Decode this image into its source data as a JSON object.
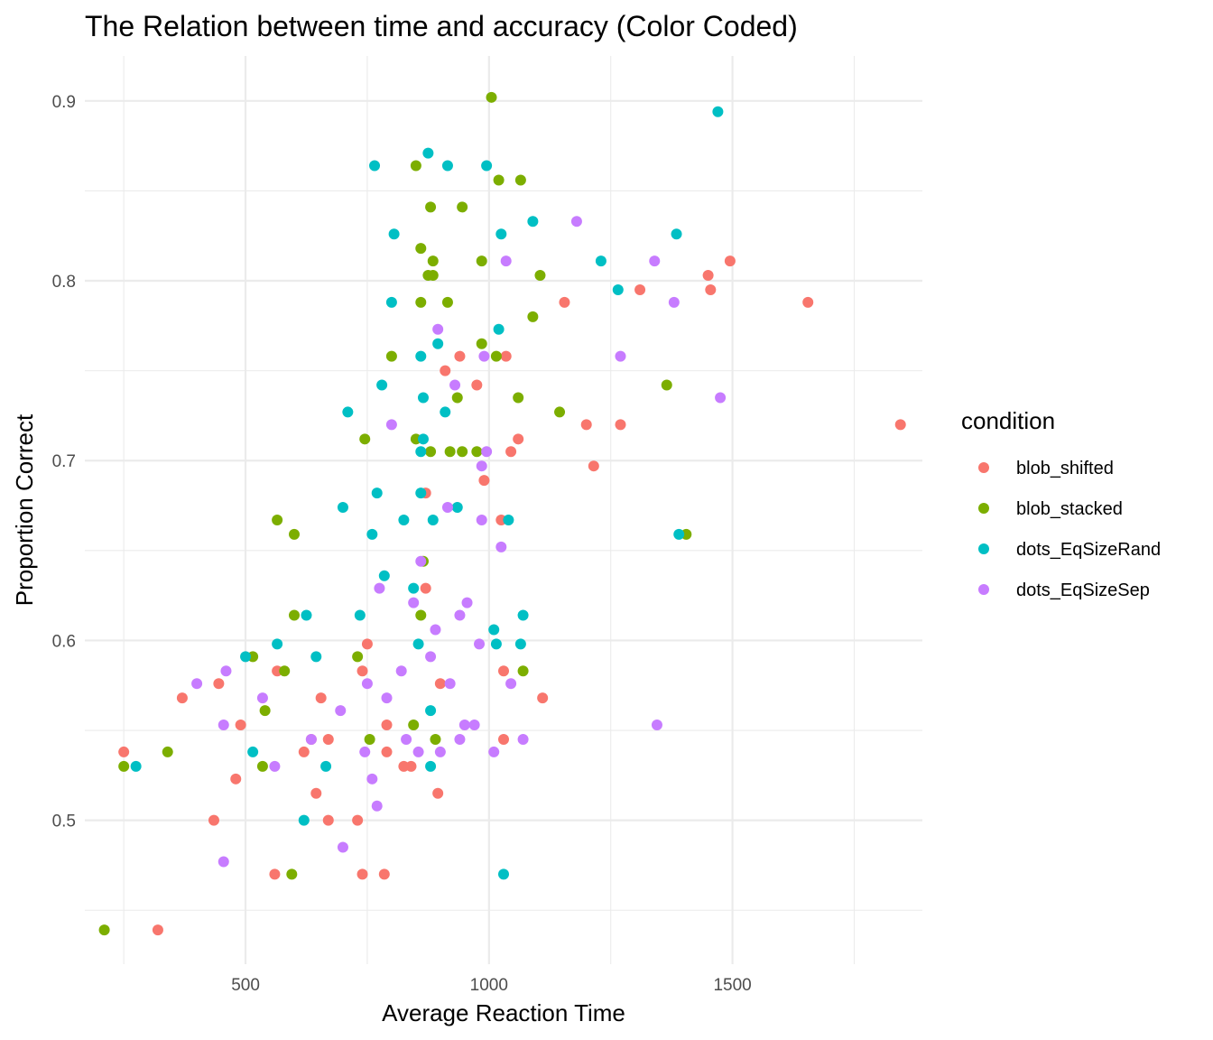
{
  "chart_data": {
    "type": "scatter",
    "title": "The Relation between time and accuracy (Color Coded)",
    "xlabel": "Average Reaction Time",
    "ylabel": "Proportion Correct",
    "xlim": [
      170,
      1890
    ],
    "ylim": [
      0.42,
      0.925
    ],
    "x_ticks": [
      500,
      1000,
      1500
    ],
    "x_minor_ticks": [
      250,
      750,
      1250,
      1750
    ],
    "y_ticks": [
      0.5,
      0.6,
      0.7,
      0.8,
      0.9
    ],
    "y_minor_ticks": [
      0.45,
      0.55,
      0.65,
      0.75,
      0.85
    ],
    "grid": true,
    "legend": {
      "title": "condition",
      "position": "right"
    },
    "series": [
      {
        "name": "blob_shifted",
        "color": "#F8766D",
        "points": [
          [
            250,
            0.538
          ],
          [
            320,
            0.439
          ],
          [
            370,
            0.568
          ],
          [
            435,
            0.5
          ],
          [
            445,
            0.576
          ],
          [
            490,
            0.553
          ],
          [
            480,
            0.523
          ],
          [
            565,
            0.583
          ],
          [
            560,
            0.47
          ],
          [
            620,
            0.538
          ],
          [
            635,
            0.545
          ],
          [
            645,
            0.515
          ],
          [
            655,
            0.568
          ],
          [
            670,
            0.545
          ],
          [
            670,
            0.5
          ],
          [
            730,
            0.5
          ],
          [
            740,
            0.583
          ],
          [
            750,
            0.598
          ],
          [
            740,
            0.47
          ],
          [
            785,
            0.47
          ],
          [
            790,
            0.553
          ],
          [
            790,
            0.538
          ],
          [
            825,
            0.53
          ],
          [
            840,
            0.53
          ],
          [
            870,
            0.682
          ],
          [
            870,
            0.629
          ],
          [
            895,
            0.515
          ],
          [
            900,
            0.576
          ],
          [
            910,
            0.75
          ],
          [
            940,
            0.758
          ],
          [
            975,
            0.742
          ],
          [
            990,
            0.689
          ],
          [
            1025,
            0.667
          ],
          [
            1030,
            0.583
          ],
          [
            1030,
            0.545
          ],
          [
            1035,
            0.758
          ],
          [
            1045,
            0.705
          ],
          [
            1060,
            0.712
          ],
          [
            1110,
            0.568
          ],
          [
            1155,
            0.788
          ],
          [
            1200,
            0.72
          ],
          [
            1215,
            0.697
          ],
          [
            1270,
            0.72
          ],
          [
            1310,
            0.795
          ],
          [
            1450,
            0.803
          ],
          [
            1455,
            0.795
          ],
          [
            1495,
            0.811
          ],
          [
            1655,
            0.788
          ],
          [
            1845,
            0.72
          ]
        ]
      },
      {
        "name": "blob_stacked",
        "color": "#7CAE00",
        "points": [
          [
            210,
            0.439
          ],
          [
            250,
            0.53
          ],
          [
            340,
            0.538
          ],
          [
            515,
            0.591
          ],
          [
            535,
            0.53
          ],
          [
            540,
            0.561
          ],
          [
            565,
            0.667
          ],
          [
            580,
            0.583
          ],
          [
            595,
            0.47
          ],
          [
            600,
            0.659
          ],
          [
            600,
            0.614
          ],
          [
            730,
            0.591
          ],
          [
            745,
            0.712
          ],
          [
            755,
            0.545
          ],
          [
            800,
            0.758
          ],
          [
            845,
            0.553
          ],
          [
            850,
            0.864
          ],
          [
            850,
            0.712
          ],
          [
            860,
            0.788
          ],
          [
            860,
            0.818
          ],
          [
            860,
            0.614
          ],
          [
            865,
            0.644
          ],
          [
            875,
            0.803
          ],
          [
            880,
            0.841
          ],
          [
            880,
            0.705
          ],
          [
            885,
            0.803
          ],
          [
            885,
            0.811
          ],
          [
            890,
            0.545
          ],
          [
            915,
            0.788
          ],
          [
            920,
            0.705
          ],
          [
            935,
            0.735
          ],
          [
            945,
            0.841
          ],
          [
            945,
            0.705
          ],
          [
            975,
            0.705
          ],
          [
            985,
            0.811
          ],
          [
            985,
            0.765
          ],
          [
            1005,
            0.902
          ],
          [
            1015,
            0.758
          ],
          [
            1020,
            0.856
          ],
          [
            1060,
            0.735
          ],
          [
            1065,
            0.856
          ],
          [
            1070,
            0.583
          ],
          [
            1090,
            0.78
          ],
          [
            1105,
            0.803
          ],
          [
            1145,
            0.727
          ],
          [
            1365,
            0.742
          ],
          [
            1405,
            0.659
          ]
        ]
      },
      {
        "name": "dots_EqSizeRand",
        "color": "#00BFC4",
        "points": [
          [
            275,
            0.53
          ],
          [
            500,
            0.591
          ],
          [
            515,
            0.538
          ],
          [
            565,
            0.598
          ],
          [
            620,
            0.5
          ],
          [
            625,
            0.614
          ],
          [
            645,
            0.591
          ],
          [
            665,
            0.53
          ],
          [
            700,
            0.674
          ],
          [
            710,
            0.727
          ],
          [
            735,
            0.614
          ],
          [
            760,
            0.659
          ],
          [
            765,
            0.864
          ],
          [
            770,
            0.682
          ],
          [
            780,
            0.742
          ],
          [
            785,
            0.636
          ],
          [
            800,
            0.788
          ],
          [
            805,
            0.826
          ],
          [
            825,
            0.667
          ],
          [
            845,
            0.629
          ],
          [
            855,
            0.598
          ],
          [
            860,
            0.705
          ],
          [
            860,
            0.758
          ],
          [
            860,
            0.682
          ],
          [
            865,
            0.735
          ],
          [
            865,
            0.712
          ],
          [
            875,
            0.871
          ],
          [
            880,
            0.561
          ],
          [
            880,
            0.53
          ],
          [
            885,
            0.667
          ],
          [
            895,
            0.765
          ],
          [
            910,
            0.727
          ],
          [
            915,
            0.864
          ],
          [
            935,
            0.674
          ],
          [
            995,
            0.864
          ],
          [
            1010,
            0.606
          ],
          [
            1015,
            0.598
          ],
          [
            1020,
            0.773
          ],
          [
            1025,
            0.826
          ],
          [
            1030,
            0.47
          ],
          [
            1040,
            0.667
          ],
          [
            1065,
            0.598
          ],
          [
            1070,
            0.614
          ],
          [
            1090,
            0.833
          ],
          [
            1230,
            0.811
          ],
          [
            1265,
            0.795
          ],
          [
            1385,
            0.826
          ],
          [
            1390,
            0.659
          ],
          [
            1470,
            0.894
          ]
        ]
      },
      {
        "name": "dots_EqSizeSep",
        "color": "#C77CFF",
        "points": [
          [
            400,
            0.576
          ],
          [
            455,
            0.553
          ],
          [
            460,
            0.583
          ],
          [
            455,
            0.477
          ],
          [
            535,
            0.568
          ],
          [
            560,
            0.53
          ],
          [
            635,
            0.545
          ],
          [
            695,
            0.561
          ],
          [
            700,
            0.485
          ],
          [
            745,
            0.538
          ],
          [
            750,
            0.576
          ],
          [
            760,
            0.523
          ],
          [
            770,
            0.508
          ],
          [
            775,
            0.629
          ],
          [
            790,
            0.568
          ],
          [
            800,
            0.72
          ],
          [
            820,
            0.583
          ],
          [
            830,
            0.545
          ],
          [
            845,
            0.621
          ],
          [
            855,
            0.538
          ],
          [
            860,
            0.644
          ],
          [
            880,
            0.591
          ],
          [
            890,
            0.606
          ],
          [
            895,
            0.773
          ],
          [
            900,
            0.538
          ],
          [
            915,
            0.674
          ],
          [
            920,
            0.576
          ],
          [
            930,
            0.742
          ],
          [
            940,
            0.614
          ],
          [
            940,
            0.545
          ],
          [
            950,
            0.553
          ],
          [
            955,
            0.621
          ],
          [
            970,
            0.553
          ],
          [
            980,
            0.598
          ],
          [
            985,
            0.697
          ],
          [
            985,
            0.667
          ],
          [
            990,
            0.758
          ],
          [
            995,
            0.705
          ],
          [
            1010,
            0.538
          ],
          [
            1025,
            0.652
          ],
          [
            1035,
            0.811
          ],
          [
            1045,
            0.576
          ],
          [
            1070,
            0.545
          ],
          [
            1180,
            0.833
          ],
          [
            1270,
            0.758
          ],
          [
            1340,
            0.811
          ],
          [
            1345,
            0.553
          ],
          [
            1380,
            0.788
          ],
          [
            1475,
            0.735
          ]
        ]
      }
    ]
  }
}
